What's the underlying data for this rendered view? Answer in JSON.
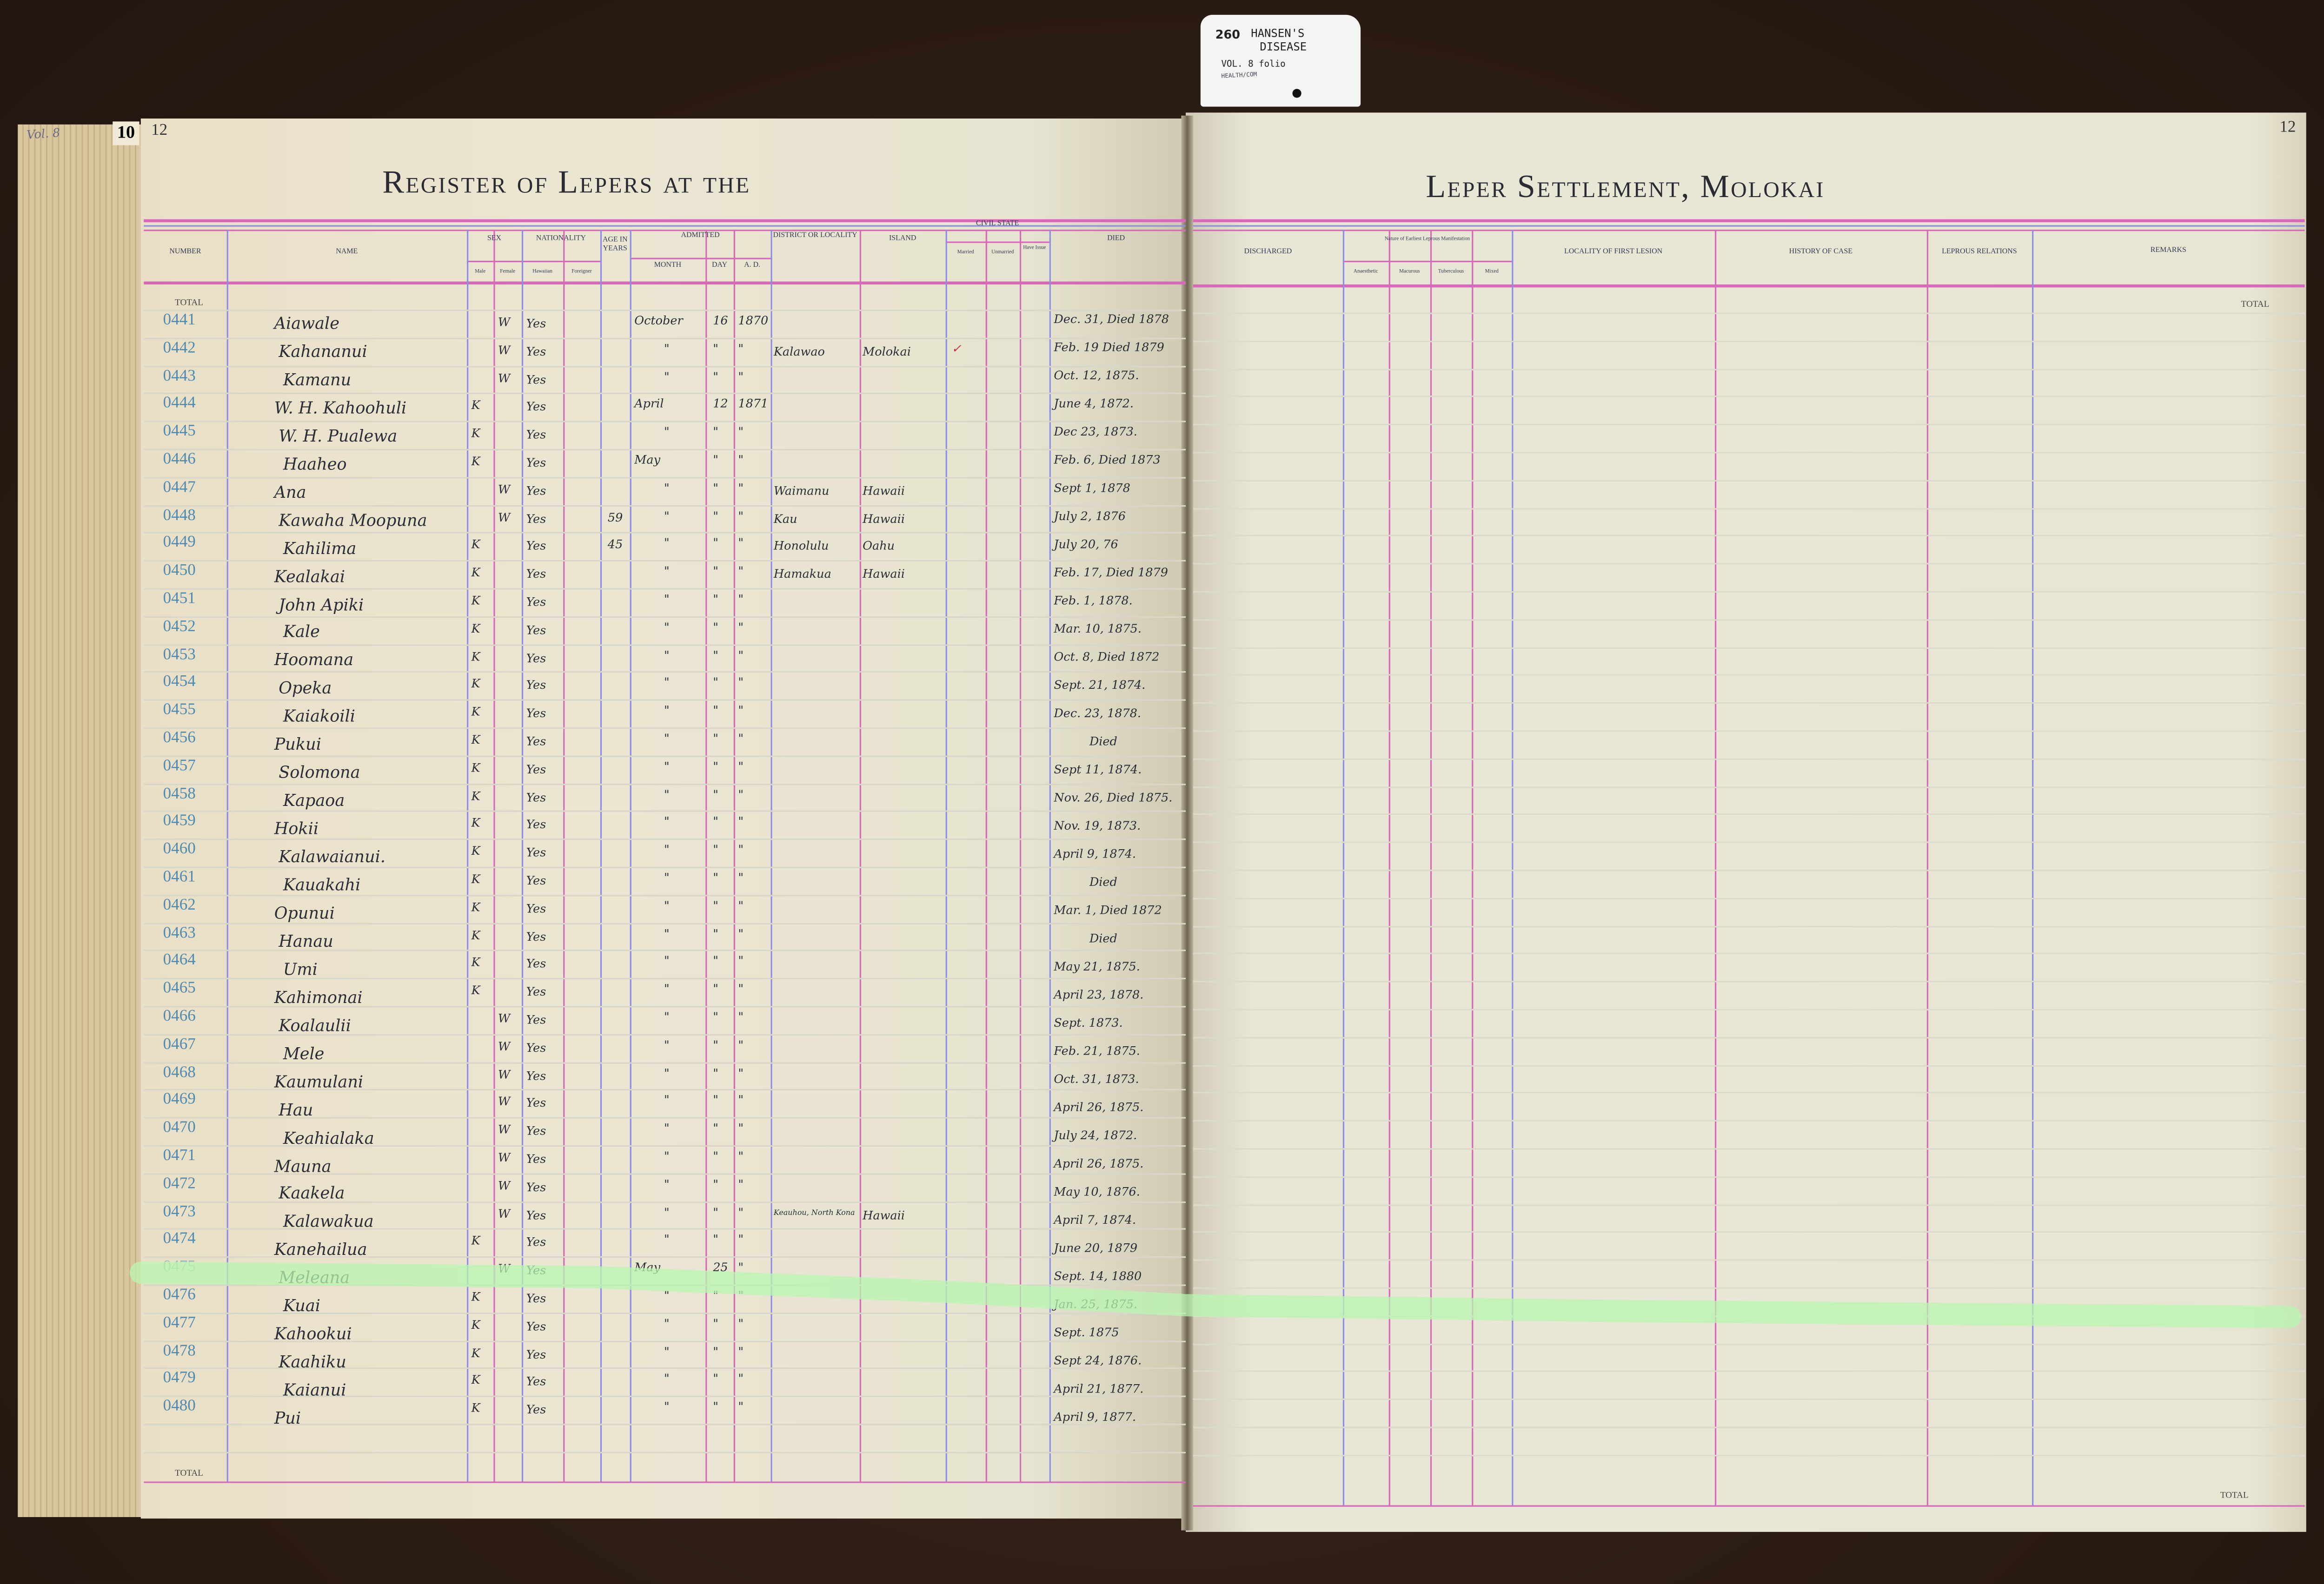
{
  "archive_tag": {
    "number": "260",
    "subject_line1": "HANSEN'S",
    "subject_line2": "DISEASE",
    "volume": "VOL. 8 folio",
    "series": "HEALTH/COM"
  },
  "edge_note": "Vol. 8",
  "left_page": {
    "page_number_outer": "10",
    "page_number": "12",
    "title": "Register of Lepers at the",
    "total_top": "TOTAL",
    "total_bottom": "TOTAL"
  },
  "right_page": {
    "page_number": "12",
    "title": "Leper Settlement, Molokai",
    "total_top": "TOTAL",
    "total_bottom": "TOTAL"
  },
  "headers_left": {
    "number": "Number",
    "name": "Name",
    "sex": "Sex",
    "male": "Male",
    "female": "Female",
    "nationality": "Nationality",
    "hawaiian": "Hawaiian",
    "foreigner": "Foreigner",
    "age": "Age in Years",
    "admitted": "Admitted",
    "month": "Month",
    "day": "Day",
    "ad": "A. D.",
    "district": "District or Locality",
    "island": "Island",
    "civil_state": "Civil State",
    "married": "Married",
    "unmarried": "Unmarried",
    "have_issue": "Have Issue",
    "died": "Died"
  },
  "headers_right": {
    "discharged": "Discharged",
    "nature": "Nature of Earliest Leprous Manifestation",
    "anaesthetic": "Anaesthetic",
    "macurous": "Macurous",
    "tuberculous": "Tuberculous",
    "mixed": "Mixed",
    "locality": "Locality of First Lesion",
    "history": "History of Case",
    "relations": "Leprous Relations",
    "remarks": "Remarks"
  },
  "colors": {
    "pink_rule": "#d868b8",
    "blue_rule": "#8c8ee6",
    "number_ink": "#4f8ab0",
    "highlighter": "#b8f5b0"
  },
  "highlighted_row": "0475",
  "rows": [
    {
      "number": "0441",
      "name": "Aiawale",
      "female": "W",
      "hawaiian": "Yes",
      "month": "October",
      "day": "16",
      "year": "1870",
      "died": "Dec. 31, Died 1878"
    },
    {
      "number": "0442",
      "name": "Kahananui",
      "female": "W",
      "hawaiian": "Yes",
      "month": "\"",
      "day": "\"",
      "year": "\"",
      "district": "Kalawao",
      "island": "Molokai",
      "married": "✓",
      "died": "Feb. 19 Died 1879"
    },
    {
      "number": "0443",
      "name": "Kamanu",
      "female": "W",
      "hawaiian": "Yes",
      "month": "\"",
      "day": "\"",
      "year": "\"",
      "died": "Oct. 12, 1875."
    },
    {
      "number": "0444",
      "name": "W. H. Kahoohuli",
      "male": "K",
      "hawaiian": "Yes",
      "month": "April",
      "day": "12",
      "year": "1871",
      "died": "June 4, 1872."
    },
    {
      "number": "0445",
      "name": "W. H. Pualewa",
      "male": "K",
      "hawaiian": "Yes",
      "month": "\"",
      "day": "\"",
      "year": "\"",
      "died": "Dec 23, 1873."
    },
    {
      "number": "0446",
      "name": "Haaheo",
      "male": "K",
      "hawaiian": "Yes",
      "month": "May",
      "day": "\"",
      "year": "\"",
      "died": "Feb. 6, Died 1873"
    },
    {
      "number": "0447",
      "name": "Ana",
      "female": "W",
      "hawaiian": "Yes",
      "month": "\"",
      "day": "\"",
      "year": "\"",
      "district": "Waimanu",
      "island": "Hawaii",
      "died": "Sept 1, 1878"
    },
    {
      "number": "0448",
      "name": "Kawaha Moopuna",
      "female": "W",
      "hawaiian": "Yes",
      "age": "59",
      "month": "\"",
      "day": "\"",
      "year": "\"",
      "district": "Kau",
      "island": "Hawaii",
      "died": "July 2, 1876"
    },
    {
      "number": "0449",
      "name": "Kahilima",
      "male": "K",
      "hawaiian": "Yes",
      "age": "45",
      "month": "\"",
      "day": "\"",
      "year": "\"",
      "district": "Honolulu",
      "island": "Oahu",
      "died": "July 20, 76"
    },
    {
      "number": "0450",
      "name": "Kealakai",
      "male": "K",
      "hawaiian": "Yes",
      "month": "\"",
      "day": "\"",
      "year": "\"",
      "district": "Hamakua",
      "island": "Hawaii",
      "died": "Feb. 17, Died 1879"
    },
    {
      "number": "0451",
      "name": "John Apiki",
      "male": "K",
      "hawaiian": "Yes",
      "month": "\"",
      "day": "\"",
      "year": "\"",
      "died": "Feb. 1, 1878."
    },
    {
      "number": "0452",
      "name": "Kale",
      "male": "K",
      "hawaiian": "Yes",
      "month": "\"",
      "day": "\"",
      "year": "\"",
      "died": "Mar. 10, 1875."
    },
    {
      "number": "0453",
      "name": "Hoomana",
      "male": "K",
      "hawaiian": "Yes",
      "month": "\"",
      "day": "\"",
      "year": "\"",
      "died": "Oct. 8, Died 1872"
    },
    {
      "number": "0454",
      "name": "Opeka",
      "male": "K",
      "hawaiian": "Yes",
      "month": "\"",
      "day": "\"",
      "year": "\"",
      "died": "Sept. 21, 1874."
    },
    {
      "number": "0455",
      "name": "Kaiakoili",
      "male": "K",
      "hawaiian": "Yes",
      "month": "\"",
      "day": "\"",
      "year": "\"",
      "died": "Dec. 23, 1878."
    },
    {
      "number": "0456",
      "name": "Pukui",
      "male": "K",
      "hawaiian": "Yes",
      "month": "\"",
      "day": "\"",
      "year": "\"",
      "died": "Died"
    },
    {
      "number": "0457",
      "name": "Solomona",
      "male": "K",
      "hawaiian": "Yes",
      "month": "\"",
      "day": "\"",
      "year": "\"",
      "died": "Sept 11, 1874."
    },
    {
      "number": "0458",
      "name": "Kapaoa",
      "male": "K",
      "hawaiian": "Yes",
      "month": "\"",
      "day": "\"",
      "year": "\"",
      "died": "Nov. 26, Died 1875."
    },
    {
      "number": "0459",
      "name": "Hokii",
      "male": "K",
      "hawaiian": "Yes",
      "month": "\"",
      "day": "\"",
      "year": "\"",
      "died": "Nov. 19, 1873."
    },
    {
      "number": "0460",
      "name": "Kalawaianui.",
      "male": "K",
      "hawaiian": "Yes",
      "month": "\"",
      "day": "\"",
      "year": "\"",
      "died": "April 9, 1874."
    },
    {
      "number": "0461",
      "name": "Kauakahi",
      "male": "K",
      "hawaiian": "Yes",
      "month": "\"",
      "day": "\"",
      "year": "\"",
      "died": "Died"
    },
    {
      "number": "0462",
      "name": "Opunui",
      "male": "K",
      "hawaiian": "Yes",
      "month": "\"",
      "day": "\"",
      "year": "\"",
      "died": "Mar. 1, Died 1872"
    },
    {
      "number": "0463",
      "name": "Hanau",
      "male": "K",
      "hawaiian": "Yes",
      "month": "\"",
      "day": "\"",
      "year": "\"",
      "died": "Died"
    },
    {
      "number": "0464",
      "name": "Umi",
      "male": "K",
      "hawaiian": "Yes",
      "month": "\"",
      "day": "\"",
      "year": "\"",
      "died": "May 21, 1875."
    },
    {
      "number": "0465",
      "name": "Kahimonai",
      "male": "K",
      "hawaiian": "Yes",
      "month": "\"",
      "day": "\"",
      "year": "\"",
      "died": "April 23, 1878."
    },
    {
      "number": "0466",
      "name": "Koalaulii",
      "female": "W",
      "hawaiian": "Yes",
      "month": "\"",
      "day": "\"",
      "year": "\"",
      "died": "Sept. 1873."
    },
    {
      "number": "0467",
      "name": "Mele",
      "female": "W",
      "hawaiian": "Yes",
      "month": "\"",
      "day": "\"",
      "year": "\"",
      "died": "Feb. 21, 1875."
    },
    {
      "number": "0468",
      "name": "Kaumulani",
      "female": "W",
      "hawaiian": "Yes",
      "month": "\"",
      "day": "\"",
      "year": "\"",
      "died": "Oct. 31, 1873."
    },
    {
      "number": "0469",
      "name": "Hau",
      "female": "W",
      "hawaiian": "Yes",
      "month": "\"",
      "day": "\"",
      "year": "\"",
      "died": "April 26, 1875."
    },
    {
      "number": "0470",
      "name": "Keahialaka",
      "female": "W",
      "hawaiian": "Yes",
      "month": "\"",
      "day": "\"",
      "year": "\"",
      "died": "July 24, 1872."
    },
    {
      "number": "0471",
      "name": "Mauna",
      "female": "W",
      "hawaiian": "Yes",
      "month": "\"",
      "day": "\"",
      "year": "\"",
      "died": "April 26, 1875."
    },
    {
      "number": "0472",
      "name": "Kaakela",
      "female": "W",
      "hawaiian": "Yes",
      "month": "\"",
      "day": "\"",
      "year": "\"",
      "died": "May 10, 1876."
    },
    {
      "number": "0473",
      "name": "Kalawakua",
      "female": "W",
      "hawaiian": "Yes",
      "month": "\"",
      "day": "\"",
      "year": "\"",
      "district": "Keauhou, North Kona",
      "island": "Hawaii",
      "died": "April 7, 1874."
    },
    {
      "number": "0474",
      "name": "Kanehailua",
      "male": "K",
      "hawaiian": "Yes",
      "month": "\"",
      "day": "\"",
      "year": "\"",
      "died": "June 20, 1879"
    },
    {
      "number": "0475",
      "name": "Meleana",
      "female": "W",
      "hawaiian": "Yes",
      "month": "May",
      "day": "25",
      "year": "\"",
      "died": "Sept. 14, 1880"
    },
    {
      "number": "0476",
      "name": "Kuai",
      "male": "K",
      "hawaiian": "Yes",
      "month": "\"",
      "day": "\"",
      "year": "\"",
      "died": "Jan. 25, 1875."
    },
    {
      "number": "0477",
      "name": "Kahookui",
      "male": "K",
      "hawaiian": "Yes",
      "month": "\"",
      "day": "\"",
      "year": "\"",
      "died": "Sept. 1875"
    },
    {
      "number": "0478",
      "name": "Kaahiku",
      "male": "K",
      "hawaiian": "Yes",
      "month": "\"",
      "day": "\"",
      "year": "\"",
      "died": "Sept 24, 1876."
    },
    {
      "number": "0479",
      "name": "Kaianui",
      "male": "K",
      "hawaiian": "Yes",
      "month": "\"",
      "day": "\"",
      "year": "\"",
      "died": "April 21, 1877."
    },
    {
      "number": "0480",
      "name": "Pui",
      "male": "K",
      "hawaiian": "Yes",
      "month": "\"",
      "day": "\"",
      "year": "\"",
      "died": "April 9, 1877."
    }
  ]
}
